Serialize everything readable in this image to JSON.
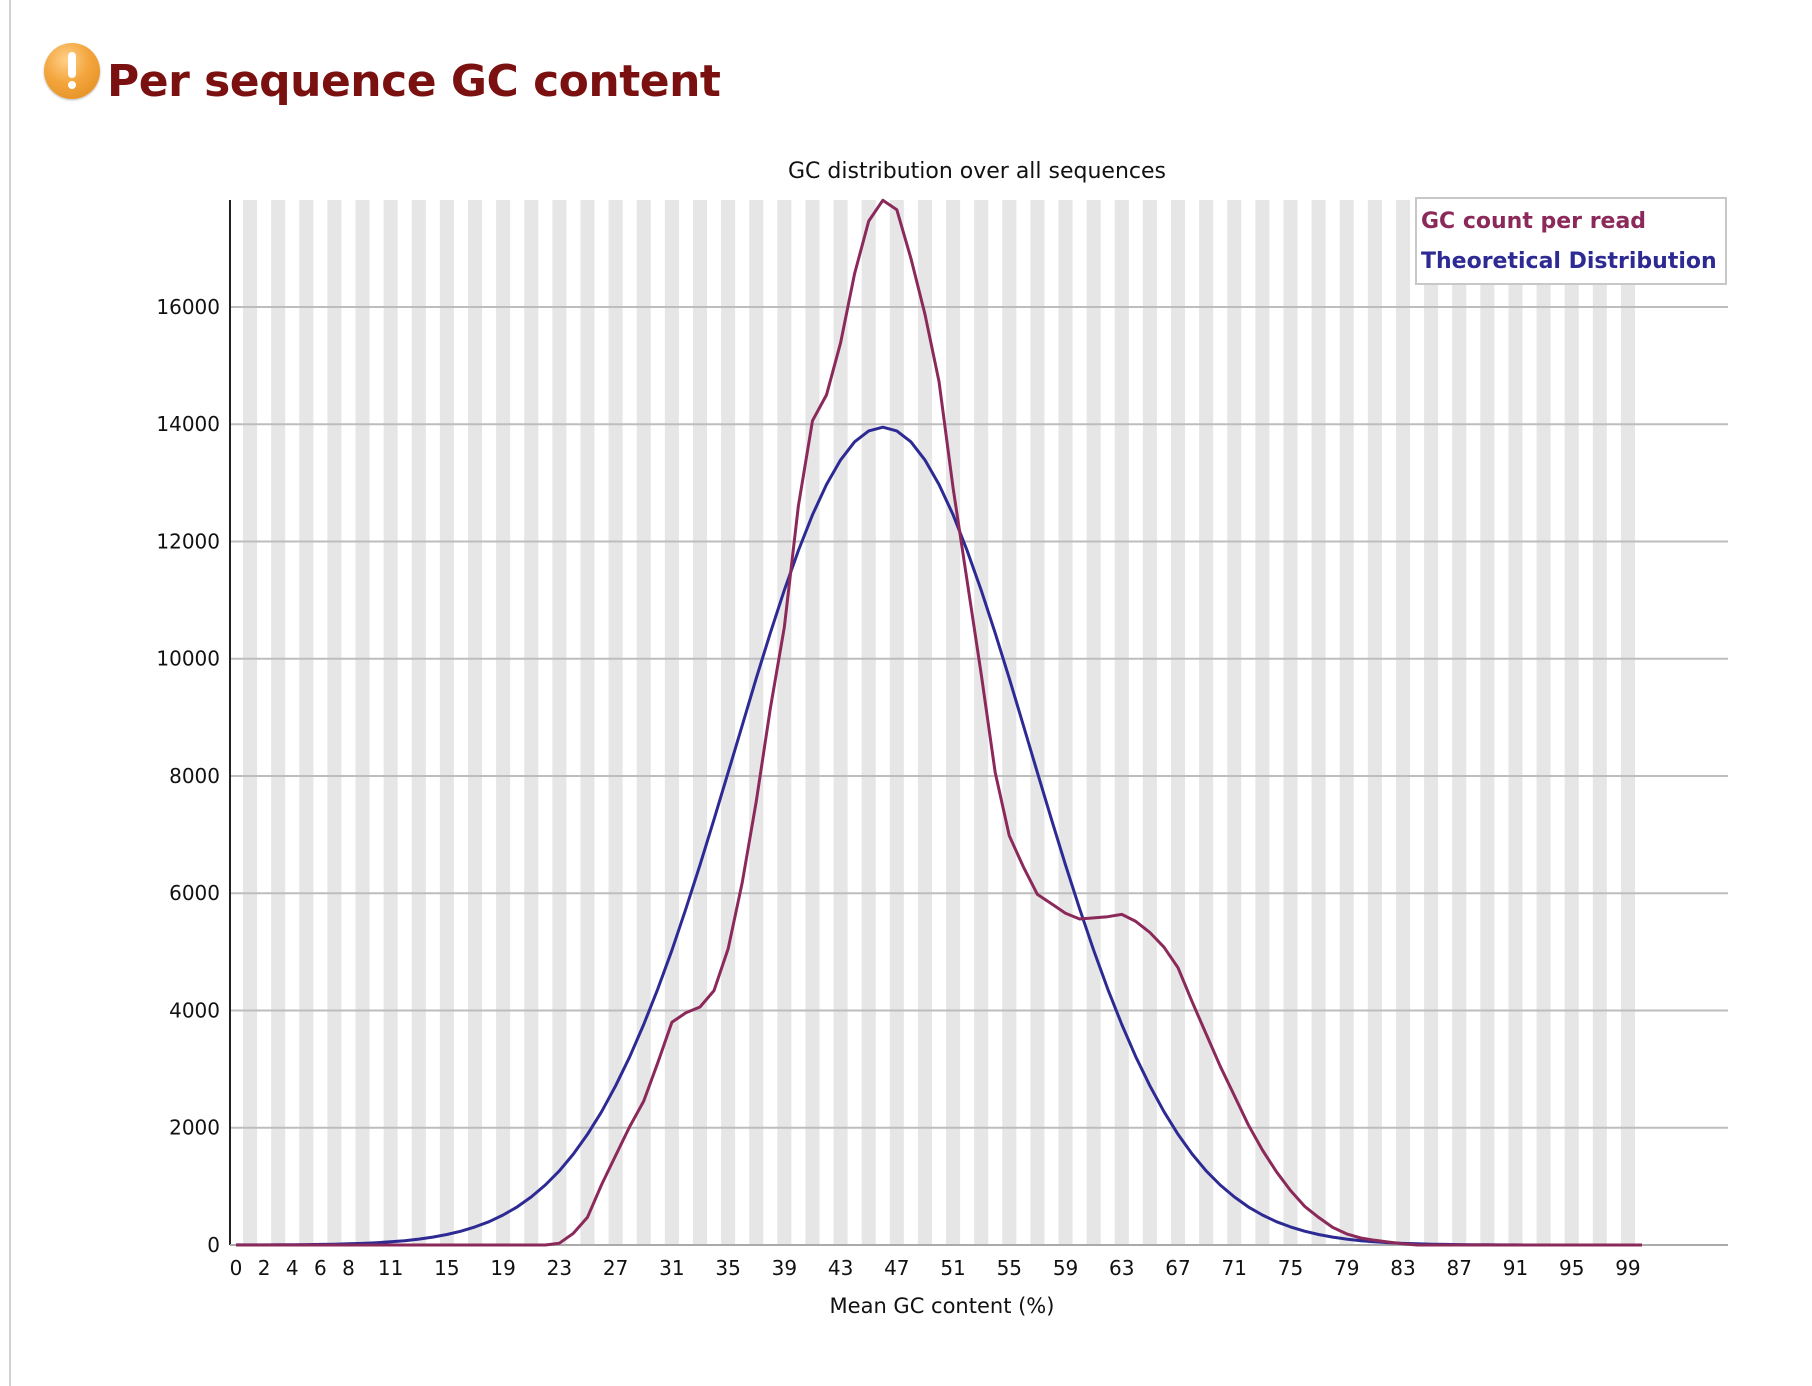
{
  "header": {
    "title": "Per sequence GC content",
    "status_icon": "warning-icon",
    "status_color": "#f3a53c",
    "title_color": "#7a1010"
  },
  "chart_data": {
    "type": "line",
    "title": "GC distribution over all sequences",
    "xlabel": "Mean GC content (%)",
    "ylabel": "",
    "xlim": [
      0,
      100
    ],
    "ylim": [
      0,
      17825
    ],
    "x_tick_labels": [
      "0",
      "2",
      "4",
      "6",
      "8",
      "11",
      "15",
      "19",
      "23",
      "27",
      "31",
      "35",
      "39",
      "43",
      "47",
      "51",
      "55",
      "59",
      "63",
      "67",
      "71",
      "75",
      "79",
      "83",
      "87",
      "91",
      "95",
      "99"
    ],
    "y_ticks": [
      0,
      2000,
      4000,
      6000,
      8000,
      10000,
      12000,
      14000,
      16000
    ],
    "grid": true,
    "legend_position": "top-right",
    "series": [
      {
        "name": "GC count per read",
        "color": "#8b2a5a",
        "values": [
          0,
          0,
          0,
          0,
          0,
          0,
          0,
          0,
          0,
          0,
          0,
          0,
          0,
          0,
          0,
          0,
          0,
          0,
          0,
          0,
          0,
          0,
          0,
          30,
          200,
          475,
          1030,
          1525,
          2020,
          2455,
          3110,
          3800,
          3960,
          4060,
          4340,
          5050,
          6180,
          7560,
          9150,
          10535,
          12610,
          14060,
          14500,
          15390,
          16570,
          17465,
          17820,
          17660,
          16830,
          15880,
          14730,
          12910,
          11330,
          9740,
          8060,
          6980,
          6450,
          5980,
          5820,
          5660,
          5560,
          5580,
          5600,
          5640,
          5520,
          5330,
          5080,
          4730,
          4150,
          3600,
          3050,
          2550,
          2050,
          1620,
          1250,
          930,
          660,
          470,
          300,
          190,
          120,
          80,
          50,
          20,
          0,
          0,
          0,
          0,
          0,
          0,
          0,
          0,
          0,
          0,
          0,
          0,
          0,
          0,
          0,
          0,
          0
        ]
      },
      {
        "name": "Theoretical Distribution",
        "color": "#2e2a94",
        "values": [
          1,
          1,
          2,
          3,
          5,
          7,
          10,
          14,
          20,
          28,
          39,
          54,
          74,
          100,
          134,
          179,
          235,
          308,
          398,
          511,
          650,
          820,
          1024,
          1266,
          1553,
          1888,
          2274,
          2715,
          3210,
          3761,
          4368,
          5027,
          5737,
          6484,
          7259,
          8058,
          8862,
          9665,
          10437,
          11170,
          11847,
          12455,
          12973,
          13392,
          13700,
          13887,
          13950,
          13887,
          13700,
          13392,
          12973,
          12455,
          11847,
          11170,
          10437,
          9665,
          8862,
          8058,
          7259,
          6484,
          5737,
          5027,
          4368,
          3761,
          3210,
          2715,
          2274,
          1888,
          1553,
          1266,
          1024,
          820,
          650,
          511,
          398,
          308,
          235,
          179,
          134,
          100,
          74,
          54,
          39,
          28,
          20,
          14,
          10,
          7,
          5,
          3,
          2,
          1,
          0,
          0,
          0,
          0,
          0,
          0,
          0,
          0,
          0
        ]
      }
    ]
  }
}
